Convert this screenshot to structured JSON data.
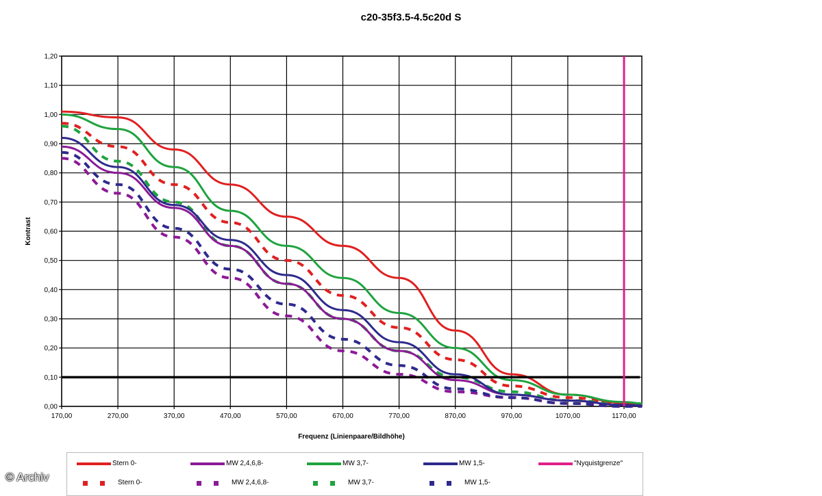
{
  "chart_data": {
    "type": "line",
    "title": "c20-35f3.5-4.5c20d S",
    "xlabel": "Frequenz (Linienpaare/Bildhöhe)",
    "ylabel": "Kontrast",
    "xlim": [
      170,
      1202
    ],
    "ylim": [
      0,
      1.2
    ],
    "grid": true,
    "legend_position": "bottom",
    "x_ticks": [
      "170,00",
      "270,00",
      "370,00",
      "470,00",
      "570,00",
      "670,00",
      "770,00",
      "870,00",
      "970,00",
      "1070,00",
      "1170,00"
    ],
    "y_ticks": [
      "0,00",
      "0,10",
      "0,20",
      "0,30",
      "0,40",
      "0,50",
      "0,60",
      "0,70",
      "0,80",
      "0,90",
      "1,00",
      "1,10",
      "1,20"
    ],
    "x": [
      170,
      270,
      370,
      470,
      570,
      670,
      770,
      870,
      970,
      1070,
      1170,
      1202
    ],
    "series": [
      {
        "name": "Stern 0-",
        "style": "solid",
        "color": "#e02020",
        "values": [
          1.01,
          0.99,
          0.88,
          0.76,
          0.65,
          0.55,
          0.44,
          0.26,
          0.11,
          0.04,
          0.012,
          0.008
        ]
      },
      {
        "name": "MW 2,4,6,8-",
        "style": "solid",
        "color": "#8b1a96",
        "values": [
          0.89,
          0.8,
          0.68,
          0.55,
          0.42,
          0.3,
          0.19,
          0.09,
          0.04,
          0.02,
          0.005,
          0.003
        ]
      },
      {
        "name": "MW 3,7-",
        "style": "solid",
        "color": "#1fa33f",
        "values": [
          1.0,
          0.95,
          0.82,
          0.67,
          0.55,
          0.44,
          0.32,
          0.2,
          0.09,
          0.04,
          0.015,
          0.01
        ]
      },
      {
        "name": "MW 1,5-",
        "style": "solid",
        "color": "#2e2a8c",
        "values": [
          0.92,
          0.82,
          0.69,
          0.57,
          0.45,
          0.33,
          0.22,
          0.11,
          0.04,
          0.02,
          0.005,
          0.003
        ]
      },
      {
        "name": "Stern 0-",
        "style": "dashed",
        "color": "#e02020",
        "values": [
          0.97,
          0.89,
          0.76,
          0.63,
          0.5,
          0.38,
          0.27,
          0.16,
          0.07,
          0.03,
          0.01,
          0.006
        ]
      },
      {
        "name": "MW 2,4,6,8-",
        "style": "dashed",
        "color": "#8b1a96",
        "values": [
          0.85,
          0.73,
          0.58,
          0.44,
          0.31,
          0.19,
          0.11,
          0.05,
          0.03,
          0.01,
          0.0,
          0.0
        ]
      },
      {
        "name": "MW 3,7-",
        "style": "dashed",
        "color": "#1fa33f",
        "values": [
          0.96,
          0.84,
          0.7,
          0.55,
          0.42,
          0.3,
          0.19,
          0.1,
          0.05,
          0.02,
          0.01,
          0.008
        ]
      },
      {
        "name": "MW 1,5-",
        "style": "dashed",
        "color": "#2e2a8c",
        "values": [
          0.87,
          0.76,
          0.61,
          0.47,
          0.35,
          0.23,
          0.14,
          0.06,
          0.03,
          0.01,
          0.0,
          0.0
        ]
      }
    ],
    "reference_lines": [
      {
        "name": "threshold",
        "axis": "y",
        "value": 0.1,
        "color": "#000000"
      },
      {
        "name": "\"Nyquistgrenze\"",
        "axis": "x",
        "value": 1170,
        "color": "#e0208a"
      }
    ]
  },
  "legend": {
    "row1": [
      "Stern 0-",
      "MW 2,4,6,8-",
      "MW 3,7-",
      "MW 1,5-",
      "\"Nyquistgrenze\""
    ],
    "row2": [
      "Stern 0-",
      "MW 2,4,6,8-",
      "MW 3,7-",
      "MW 1,5-"
    ]
  },
  "copyright": "© Archiv"
}
